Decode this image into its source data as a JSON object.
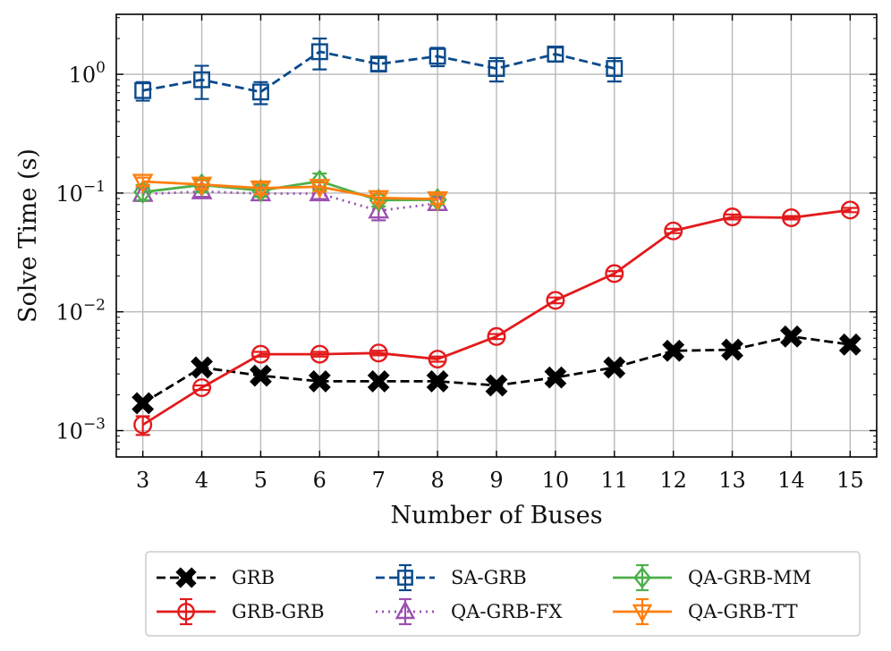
{
  "chart_data": {
    "type": "line",
    "xlabel": "Number of Buses",
    "ylabel": "Solve Time (s)",
    "yscale": "log",
    "xlim": [
      2.55,
      15.45
    ],
    "ylim": [
      0.0006,
      3.2
    ],
    "x_ticks": [
      3,
      4,
      5,
      6,
      7,
      8,
      9,
      10,
      11,
      12,
      13,
      14,
      15
    ],
    "y_ticks": [
      {
        "value": 0.001,
        "base": "10",
        "exp": "−3"
      },
      {
        "value": 0.01,
        "base": "10",
        "exp": "−2"
      },
      {
        "value": 0.1,
        "base": "10",
        "exp": "−1"
      },
      {
        "value": 1,
        "base": "10",
        "exp": "0"
      }
    ],
    "grid": true,
    "legend_position": "bottom, below plot",
    "series": [
      {
        "name": "GRB",
        "color": "#000000",
        "line": "dashed",
        "marker": "x-filled",
        "x": [
          3,
          4,
          5,
          6,
          7,
          8,
          9,
          10,
          11,
          12,
          13,
          14,
          15
        ],
        "y": [
          0.0017,
          0.0034,
          0.0029,
          0.0026,
          0.0026,
          0.0026,
          0.0024,
          0.0028,
          0.0034,
          0.0047,
          0.0048,
          0.0062,
          0.0053
        ],
        "err": [
          0,
          0,
          0,
          0,
          0,
          0,
          0,
          0,
          0,
          0,
          0,
          0,
          0
        ]
      },
      {
        "name": "GRB-GRB",
        "color": "#e31a1c",
        "line": "solid",
        "marker": "circle-open",
        "x": [
          3,
          4,
          5,
          6,
          7,
          8,
          9,
          10,
          11,
          12,
          13,
          14,
          15
        ],
        "y": [
          0.00112,
          0.0023,
          0.0044,
          0.0044,
          0.0045,
          0.004,
          0.0062,
          0.0125,
          0.021,
          0.048,
          0.063,
          0.062,
          0.072
        ],
        "err": [
          0.0002,
          0.0001,
          0.0002,
          0.0002,
          0.0002,
          0.0002,
          0.0003,
          0.0007,
          0.001,
          0.002,
          0.003,
          0.002,
          0.003
        ]
      },
      {
        "name": "SA-GRB",
        "color": "#0b4a8b",
        "line": "dashed",
        "marker": "square-open",
        "x": [
          3,
          4,
          5,
          6,
          7,
          8,
          9,
          10,
          11
        ],
        "y": [
          0.73,
          0.9,
          0.71,
          1.55,
          1.22,
          1.42,
          1.12,
          1.48,
          1.12
        ],
        "err": [
          0.13,
          0.28,
          0.15,
          0.45,
          0.15,
          0.25,
          0.25,
          0.2,
          0.25
        ]
      },
      {
        "name": "QA-GRB-FX",
        "color": "#9b4fb0",
        "line": "dotted",
        "marker": "triangle-up-open",
        "x": [
          3,
          4,
          5,
          6,
          7,
          8
        ],
        "y": [
          0.098,
          0.103,
          0.099,
          0.099,
          0.071,
          0.082
        ],
        "err": [
          0.012,
          0.01,
          0.012,
          0.01,
          0.012,
          0.01
        ]
      },
      {
        "name": "QA-GRB-MM",
        "color": "#4daf4a",
        "line": "solid",
        "marker": "diamond-open",
        "x": [
          3,
          4,
          5,
          6,
          7,
          8
        ],
        "y": [
          0.102,
          0.117,
          0.105,
          0.126,
          0.087,
          0.088
        ],
        "err": [
          0.015,
          0.015,
          0.012,
          0.02,
          0.01,
          0.008
        ]
      },
      {
        "name": "QA-GRB-TT",
        "color": "#ff7f0e",
        "line": "solid",
        "marker": "triangle-down-open",
        "x": [
          3,
          4,
          5,
          6,
          7,
          8
        ],
        "y": [
          0.125,
          0.118,
          0.11,
          0.113,
          0.091,
          0.089
        ],
        "err": [
          0.01,
          0.01,
          0.012,
          0.01,
          0.008,
          0.008
        ]
      }
    ]
  }
}
